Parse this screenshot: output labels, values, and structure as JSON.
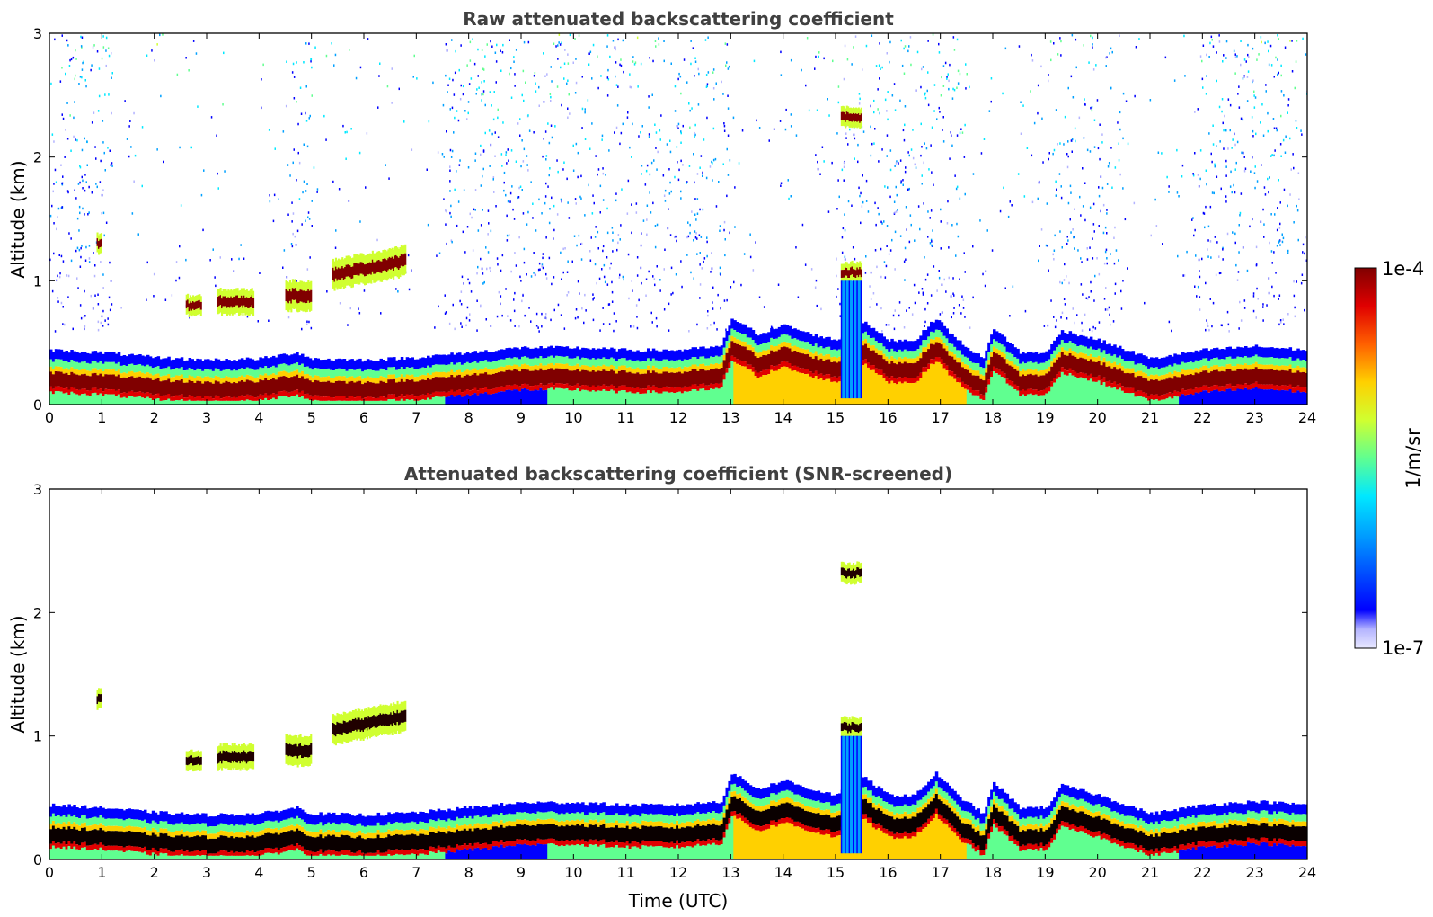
{
  "chart_data": [
    {
      "type": "heatmap",
      "title": "Raw attenuated backscattering coefficient",
      "xlabel": "",
      "ylabel": "Altitude (km)",
      "xlim": [
        0,
        24
      ],
      "ylim": [
        0,
        3
      ],
      "xticks": [
        "0",
        "1",
        "2",
        "3",
        "4",
        "5",
        "6",
        "7",
        "8",
        "9",
        "10",
        "11",
        "12",
        "13",
        "14",
        "15",
        "16",
        "17",
        "18",
        "19",
        "20",
        "21",
        "22",
        "23",
        "24"
      ],
      "yticks": [
        "0",
        "1",
        "2",
        "3"
      ],
      "screened": false
    },
    {
      "type": "heatmap",
      "title": "Attenuated backscattering coefficient (SNR-screened)",
      "xlabel": "Time (UTC)",
      "ylabel": "Altitude (km)",
      "xlim": [
        0,
        24
      ],
      "ylim": [
        0,
        3
      ],
      "xticks": [
        "0",
        "1",
        "2",
        "3",
        "4",
        "5",
        "6",
        "7",
        "8",
        "9",
        "10",
        "11",
        "12",
        "13",
        "14",
        "15",
        "16",
        "17",
        "18",
        "19",
        "20",
        "21",
        "22",
        "23",
        "24"
      ],
      "yticks": [
        "0",
        "1",
        "2",
        "3"
      ],
      "screened": true
    }
  ],
  "colorbar": {
    "label": "1/m/sr",
    "max_label": "1e-4",
    "min_label": "1e-7",
    "scale": "log",
    "range": [
      1e-07,
      0.0001
    ],
    "colors": [
      "#e8e8ff",
      "#b4b4ff",
      "#0000ff",
      "#00a0ff",
      "#00e8ff",
      "#60ff90",
      "#d0ff30",
      "#ffd000",
      "#ff6000",
      "#e00000",
      "#800000"
    ]
  },
  "features": {
    "boundary_layer_height_km": [
      {
        "t": 0,
        "h": 0.22
      },
      {
        "t": 1,
        "h": 0.2
      },
      {
        "t": 2,
        "h": 0.16
      },
      {
        "t": 3,
        "h": 0.14
      },
      {
        "t": 4,
        "h": 0.15
      },
      {
        "t": 4.7,
        "h": 0.2
      },
      {
        "t": 5,
        "h": 0.15
      },
      {
        "t": 6,
        "h": 0.14
      },
      {
        "t": 7,
        "h": 0.16
      },
      {
        "t": 8,
        "h": 0.2
      },
      {
        "t": 9,
        "h": 0.24
      },
      {
        "t": 10,
        "h": 0.24
      },
      {
        "t": 11,
        "h": 0.22
      },
      {
        "t": 12,
        "h": 0.22
      },
      {
        "t": 12.8,
        "h": 0.25
      },
      {
        "t": 13,
        "h": 0.48
      },
      {
        "t": 13.5,
        "h": 0.35
      },
      {
        "t": 14,
        "h": 0.42
      },
      {
        "t": 14.5,
        "h": 0.35
      },
      {
        "t": 15,
        "h": 0.3
      },
      {
        "t": 15.5,
        "h": 0.45
      },
      {
        "t": 16,
        "h": 0.3
      },
      {
        "t": 16.5,
        "h": 0.3
      },
      {
        "t": 16.9,
        "h": 0.48
      },
      {
        "t": 17.3,
        "h": 0.3
      },
      {
        "t": 17.8,
        "h": 0.15
      },
      {
        "t": 18,
        "h": 0.4
      },
      {
        "t": 18.5,
        "h": 0.2
      },
      {
        "t": 19,
        "h": 0.2
      },
      {
        "t": 19.3,
        "h": 0.38
      },
      {
        "t": 20,
        "h": 0.3
      },
      {
        "t": 21,
        "h": 0.15
      },
      {
        "t": 22,
        "h": 0.22
      },
      {
        "t": 23,
        "h": 0.25
      },
      {
        "t": 24,
        "h": 0.22
      }
    ],
    "elevated_layers": [
      {
        "t0": 0.9,
        "t1": 1.0,
        "h": 1.3,
        "dh": 0.08
      },
      {
        "t0": 2.6,
        "t1": 2.9,
        "h": 0.8,
        "dh": 0.08
      },
      {
        "t0": 3.2,
        "t1": 3.9,
        "h": 0.83,
        "dh": 0.1
      },
      {
        "t0": 4.5,
        "t1": 5.0,
        "h": 0.88,
        "dh": 0.12
      },
      {
        "t0": 5.4,
        "t1": 6.8,
        "h": 1.05,
        "dh": 0.12
      },
      {
        "t0": 15.1,
        "t1": 15.5,
        "h": 1.07,
        "dh": 0.08
      },
      {
        "t0": 15.1,
        "t1": 15.5,
        "h": 2.32,
        "dh": 0.08
      }
    ]
  }
}
